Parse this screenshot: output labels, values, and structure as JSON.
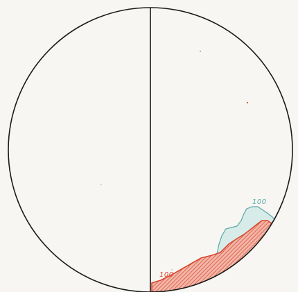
{
  "diagram": {
    "colors": {
      "background": "#f7f6f2",
      "outline": "#1a1a1a",
      "blue_region": "#5aa7a7",
      "blue_fill": "#d7ebe8",
      "red_region": "#d8462e",
      "red_fill": "#f2b6a8"
    },
    "labels": {
      "blue_value": "100",
      "red_value": "100"
    }
  }
}
